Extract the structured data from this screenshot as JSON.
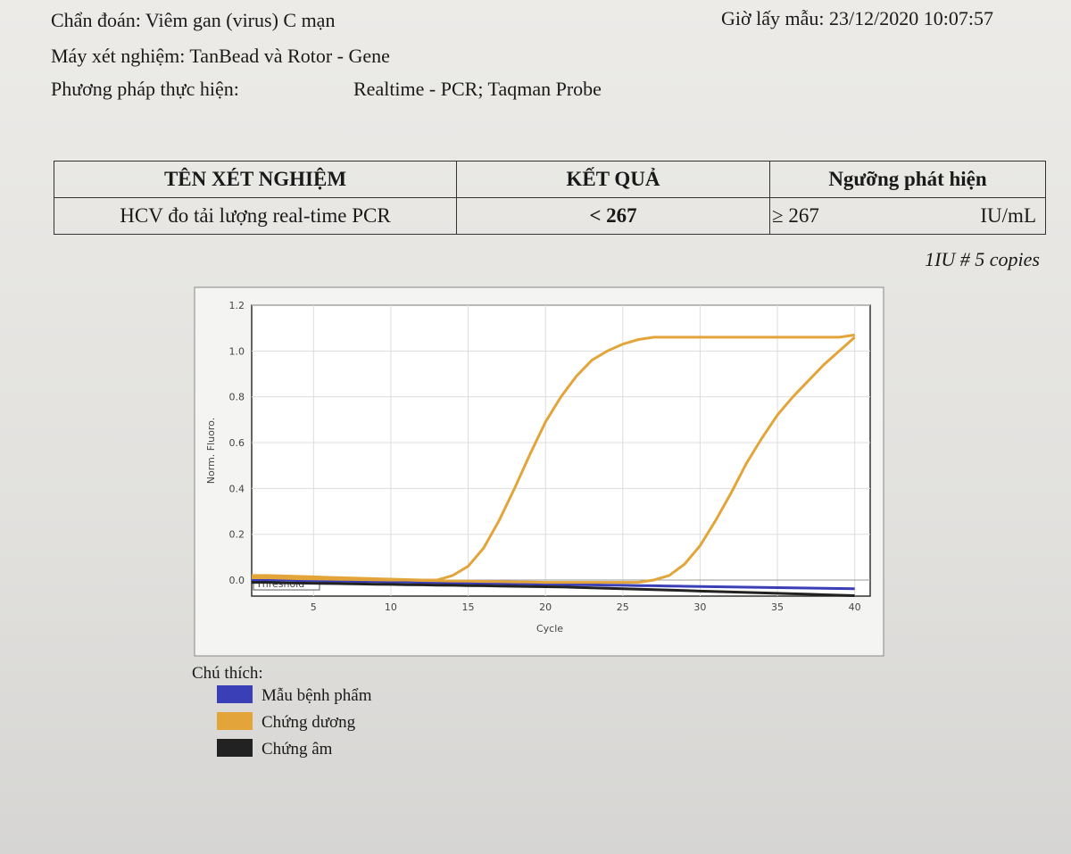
{
  "header": {
    "diagnosis": "Chẩn đoán: Viêm gan (virus) C mạn",
    "sample_time": "Giờ lấy mẫu: 23/12/2020  10:07:57",
    "machine": "Máy xét nghiệm: TanBead và Rotor - Gene",
    "method_label": "Phương pháp thực hiện:",
    "method_value": "Realtime - PCR; Taqman Probe"
  },
  "table": {
    "headers": [
      "TÊN XÉT NGHIỆM",
      "KẾT QUẢ",
      "Ngưỡng phát hiện"
    ],
    "rows": [
      [
        "HCV đo tải lượng real-time PCR",
        "< 267",
        "≥ 267",
        "IU/mL"
      ]
    ]
  },
  "note": "1IU # 5 copies",
  "legend_title": "Chú thích:",
  "chart_data": {
    "type": "line",
    "x_label": "Cycle",
    "y_label": "Norm. Fluoro.",
    "x": [
      1,
      2,
      3,
      4,
      5,
      6,
      7,
      8,
      9,
      10,
      11,
      12,
      13,
      14,
      15,
      16,
      17,
      18,
      19,
      20,
      21,
      22,
      23,
      24,
      25,
      26,
      27,
      28,
      29,
      30,
      31,
      32,
      33,
      34,
      35,
      36,
      37,
      38,
      39,
      40
    ],
    "xlim": [
      1,
      41
    ],
    "xticks": [
      5,
      10,
      15,
      20,
      25,
      30,
      35,
      40
    ],
    "ylim": [
      -0.07,
      1.2
    ],
    "yticks": [
      {
        "value": 0,
        "label": "0.0"
      },
      0.2,
      0.4,
      0.6,
      0.8,
      {
        "value": 1,
        "label": "1.0"
      },
      1.2
    ],
    "grid": true,
    "threshold": {
      "value": 0,
      "label": "Threshold"
    },
    "series": [
      {
        "name": "Mẫu bệnh phẩm",
        "color": "#3a3fb8",
        "values": [
          0.0,
          0.0,
          0.0,
          -0.002,
          -0.003,
          -0.004,
          -0.005,
          -0.006,
          -0.007,
          -0.008,
          -0.009,
          -0.01,
          -0.011,
          -0.012,
          -0.013,
          -0.014,
          -0.015,
          -0.016,
          -0.017,
          -0.018,
          -0.019,
          -0.02,
          -0.021,
          -0.022,
          -0.023,
          -0.024,
          -0.025,
          -0.026,
          -0.027,
          -0.028,
          -0.029,
          -0.03,
          -0.031,
          -0.032,
          -0.033,
          -0.034,
          -0.035,
          -0.036,
          -0.037,
          -0.038
        ]
      },
      {
        "name": "Chứng dương",
        "color": "#e3a53a",
        "values": [
          0.02,
          0.02,
          0.018,
          0.016,
          0.014,
          0.012,
          0.01,
          0.008,
          0.006,
          0.004,
          0.002,
          0.0,
          0.0,
          0.02,
          0.06,
          0.14,
          0.26,
          0.4,
          0.55,
          0.69,
          0.8,
          0.89,
          0.96,
          1.0,
          1.03,
          1.05,
          1.06,
          1.06,
          1.06,
          1.06,
          1.06,
          1.06,
          1.06,
          1.06,
          1.06,
          1.06,
          1.06,
          1.06,
          1.06,
          1.07
        ]
      },
      {
        "name": "Chứng dương",
        "color": "#e3a53a",
        "values": [
          0.01,
          0.01,
          0.008,
          0.006,
          0.005,
          0.004,
          0.003,
          0.002,
          0.001,
          0.0,
          0.0,
          -0.002,
          -0.003,
          -0.004,
          -0.005,
          -0.006,
          -0.007,
          -0.008,
          -0.009,
          -0.01,
          -0.01,
          -0.01,
          -0.01,
          -0.01,
          -0.01,
          -0.01,
          0.0,
          0.02,
          0.07,
          0.15,
          0.26,
          0.38,
          0.51,
          0.62,
          0.72,
          0.8,
          0.87,
          0.94,
          1.0,
          1.06
        ]
      },
      {
        "name": "Chứng âm",
        "color": "#222222",
        "values": [
          -0.01,
          -0.01,
          -0.012,
          -0.013,
          -0.014,
          -0.015,
          -0.016,
          -0.017,
          -0.018,
          -0.019,
          -0.02,
          -0.021,
          -0.022,
          -0.023,
          -0.024,
          -0.025,
          -0.026,
          -0.027,
          -0.028,
          -0.029,
          -0.03,
          -0.032,
          -0.034,
          -0.036,
          -0.038,
          -0.04,
          -0.042,
          -0.044,
          -0.046,
          -0.048,
          -0.05,
          -0.052,
          -0.054,
          -0.056,
          -0.058,
          -0.06,
          -0.062,
          -0.064,
          -0.066,
          -0.068
        ]
      }
    ]
  }
}
